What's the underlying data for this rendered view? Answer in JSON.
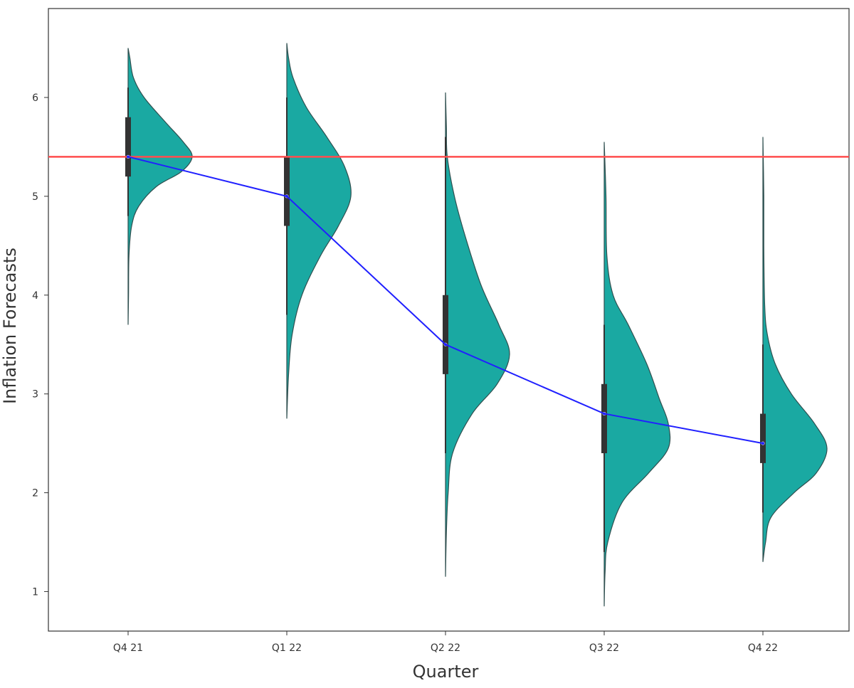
{
  "chart_data": {
    "type": "violin",
    "xlabel": "Quarter",
    "ylabel": "Inflation Forecasts",
    "categories": [
      "Q4 21",
      "Q1 22",
      "Q2 22",
      "Q3 22",
      "Q4 22"
    ],
    "y_ticks": [
      1,
      2,
      3,
      4,
      5,
      6
    ],
    "ylim": [
      0.6,
      6.9
    ],
    "grid": false,
    "violin_color": "#1aa9a2",
    "violin_outline_color": "#2f4f4f",
    "violins": [
      {
        "category": "Q4 21",
        "min": 3.7,
        "max": 6.5,
        "q1": 5.2,
        "median": 5.4,
        "q3": 5.8,
        "whisker_low": 4.8,
        "whisker_high": 6.1,
        "density": [
          [
            3.7,
            0.0
          ],
          [
            4.0,
            0.005
          ],
          [
            4.4,
            0.01
          ],
          [
            4.7,
            0.04
          ],
          [
            4.9,
            0.12
          ],
          [
            5.1,
            0.32
          ],
          [
            5.25,
            0.6
          ],
          [
            5.4,
            0.72
          ],
          [
            5.55,
            0.62
          ],
          [
            5.75,
            0.42
          ],
          [
            6.0,
            0.18
          ],
          [
            6.2,
            0.06
          ],
          [
            6.4,
            0.02
          ],
          [
            6.5,
            0.0
          ]
        ]
      },
      {
        "category": "Q1 22",
        "min": 2.75,
        "max": 6.55,
        "q1": 4.7,
        "median": 5.0,
        "q3": 5.4,
        "whisker_low": 3.8,
        "whisker_high": 6.0,
        "density": [
          [
            2.75,
            0.0
          ],
          [
            3.2,
            0.02
          ],
          [
            3.6,
            0.06
          ],
          [
            4.0,
            0.17
          ],
          [
            4.4,
            0.38
          ],
          [
            4.7,
            0.58
          ],
          [
            5.0,
            0.72
          ],
          [
            5.3,
            0.65
          ],
          [
            5.6,
            0.45
          ],
          [
            5.9,
            0.22
          ],
          [
            6.2,
            0.07
          ],
          [
            6.4,
            0.02
          ],
          [
            6.55,
            0.0
          ]
        ]
      },
      {
        "category": "Q2 22",
        "min": 1.15,
        "max": 6.05,
        "q1": 3.2,
        "median": 3.5,
        "q3": 4.0,
        "whisker_low": 2.4,
        "whisker_high": 5.6,
        "density": [
          [
            1.15,
            0.0
          ],
          [
            1.6,
            0.01
          ],
          [
            2.0,
            0.03
          ],
          [
            2.4,
            0.08
          ],
          [
            2.8,
            0.3
          ],
          [
            3.1,
            0.58
          ],
          [
            3.4,
            0.72
          ],
          [
            3.7,
            0.6
          ],
          [
            4.1,
            0.4
          ],
          [
            4.6,
            0.22
          ],
          [
            5.0,
            0.1
          ],
          [
            5.4,
            0.02
          ],
          [
            5.7,
            0.01
          ],
          [
            6.05,
            0.0
          ]
        ]
      },
      {
        "category": "Q3 22",
        "min": 0.85,
        "max": 5.55,
        "q1": 2.4,
        "median": 2.8,
        "q3": 3.1,
        "whisker_low": 1.4,
        "whisker_high": 3.7,
        "density": [
          [
            0.85,
            0.0
          ],
          [
            1.2,
            0.01
          ],
          [
            1.5,
            0.04
          ],
          [
            1.9,
            0.2
          ],
          [
            2.2,
            0.5
          ],
          [
            2.45,
            0.72
          ],
          [
            2.7,
            0.72
          ],
          [
            2.95,
            0.62
          ],
          [
            3.3,
            0.48
          ],
          [
            3.7,
            0.27
          ],
          [
            4.0,
            0.1
          ],
          [
            4.4,
            0.03
          ],
          [
            5.0,
            0.02
          ],
          [
            5.55,
            0.0
          ]
        ]
      },
      {
        "category": "Q4 22",
        "min": 1.3,
        "max": 5.6,
        "q1": 2.3,
        "median": 2.5,
        "q3": 2.8,
        "whisker_low": 1.8,
        "whisker_high": 3.5,
        "density": [
          [
            1.3,
            0.0
          ],
          [
            1.5,
            0.03
          ],
          [
            1.75,
            0.09
          ],
          [
            2.0,
            0.35
          ],
          [
            2.2,
            0.6
          ],
          [
            2.45,
            0.72
          ],
          [
            2.7,
            0.58
          ],
          [
            3.0,
            0.32
          ],
          [
            3.3,
            0.14
          ],
          [
            3.6,
            0.05
          ],
          [
            3.9,
            0.02
          ],
          [
            4.5,
            0.01
          ],
          [
            5.0,
            0.01
          ],
          [
            5.6,
            0.0
          ]
        ]
      }
    ],
    "median_line": {
      "color": "#2020ff",
      "values": [
        5.4,
        5.0,
        3.5,
        2.8,
        2.5
      ]
    },
    "reference_line": {
      "color": "#ff4d4d",
      "value": 5.4
    }
  }
}
